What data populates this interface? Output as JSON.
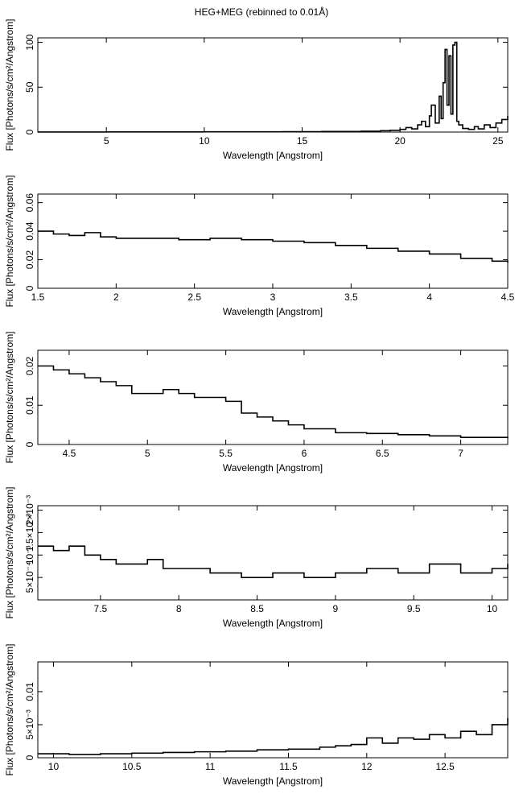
{
  "figure_title": "HEG+MEG (rebinned to 0.01Å)",
  "chart_data": [
    {
      "type": "line",
      "title": "",
      "xlabel": "Wavelength [Angstrom]",
      "ylabel": "Flux [Photons/s/cm²/Angstrom]",
      "xlim": [
        1.5,
        25.5
      ],
      "ylim": [
        0,
        105
      ],
      "xticks": [
        5,
        10,
        15,
        20,
        25
      ],
      "xtick_labels": [
        "5",
        "10",
        "15",
        "20",
        "25"
      ],
      "yticks": [
        0,
        50,
        100
      ],
      "ytick_labels": [
        "0",
        "50",
        "100"
      ],
      "grid": false,
      "series": [
        {
          "x": [
            1.5,
            3.0,
            5.0,
            8.0,
            10.0,
            12.0,
            14.0,
            16.0,
            18.0,
            19.0,
            19.5,
            20.0,
            20.3,
            20.6,
            20.9,
            21.1,
            21.3,
            21.5,
            21.6,
            21.8,
            22.0,
            22.1,
            22.2,
            22.3,
            22.4,
            22.5,
            22.6,
            22.7,
            22.8,
            22.9,
            23.0,
            23.2,
            23.5,
            23.8,
            24.0,
            24.3,
            24.6,
            24.9,
            25.2,
            25.5
          ],
          "y": [
            0.1,
            0.1,
            0.2,
            0.2,
            0.3,
            0.3,
            0.4,
            0.6,
            1.0,
            1.5,
            2.0,
            3.0,
            5.0,
            3.5,
            8.0,
            12.0,
            6.0,
            18.0,
            30.0,
            10.0,
            40.0,
            15.0,
            55.0,
            92.0,
            30.0,
            85.0,
            20.0,
            97.0,
            100.0,
            12.0,
            8.0,
            4.0,
            3.0,
            6.0,
            3.5,
            8.0,
            5.0,
            10.0,
            14.0,
            18.0
          ]
        }
      ]
    },
    {
      "type": "line",
      "title": "",
      "xlabel": "Wavelength [Angstrom]",
      "ylabel": "Flux [Photons/s/cm²/Angstrom]",
      "xlim": [
        1.5,
        4.5
      ],
      "ylim": [
        0,
        0.066
      ],
      "xticks": [
        1.5,
        2,
        2.5,
        3,
        3.5,
        4,
        4.5
      ],
      "xtick_labels": [
        "1.5",
        "2",
        "2.5",
        "3",
        "3.5",
        "4",
        "4.5"
      ],
      "yticks": [
        0,
        0.02,
        0.04,
        0.06
      ],
      "ytick_labels": [
        "0",
        "0.02",
        "0.04",
        "0.06"
      ],
      "grid": false,
      "series": [
        {
          "x": [
            1.5,
            1.6,
            1.7,
            1.8,
            1.9,
            2.0,
            2.2,
            2.4,
            2.6,
            2.8,
            3.0,
            3.2,
            3.4,
            3.6,
            3.8,
            4.0,
            4.2,
            4.4,
            4.5
          ],
          "y": [
            0.04,
            0.038,
            0.037,
            0.039,
            0.036,
            0.035,
            0.035,
            0.034,
            0.035,
            0.034,
            0.033,
            0.032,
            0.03,
            0.028,
            0.026,
            0.024,
            0.021,
            0.019,
            0.018
          ]
        }
      ]
    },
    {
      "type": "line",
      "title": "",
      "xlabel": "Wavelength [Angstrom]",
      "ylabel": "Flux [Photons/s/cm²/Angstrom]",
      "xlim": [
        4.3,
        7.3
      ],
      "ylim": [
        0,
        0.024
      ],
      "xticks": [
        4.5,
        5,
        5.5,
        6,
        6.5,
        7
      ],
      "xtick_labels": [
        "4.5",
        "5",
        "5.5",
        "6",
        "6.5",
        "7"
      ],
      "yticks": [
        0,
        0.01,
        0.02
      ],
      "ytick_labels": [
        "0",
        "0.01",
        "0.02"
      ],
      "grid": false,
      "series": [
        {
          "x": [
            4.3,
            4.4,
            4.5,
            4.6,
            4.7,
            4.8,
            4.9,
            5.0,
            5.1,
            5.2,
            5.3,
            5.4,
            5.5,
            5.6,
            5.7,
            5.8,
            5.9,
            6.0,
            6.2,
            6.4,
            6.6,
            6.8,
            7.0,
            7.3
          ],
          "y": [
            0.02,
            0.019,
            0.018,
            0.017,
            0.016,
            0.015,
            0.013,
            0.013,
            0.014,
            0.013,
            0.012,
            0.012,
            0.011,
            0.008,
            0.007,
            0.006,
            0.005,
            0.004,
            0.003,
            0.0028,
            0.0025,
            0.0022,
            0.0018,
            0.0016
          ]
        }
      ]
    },
    {
      "type": "line",
      "title": "",
      "xlabel": "Wavelength [Angstrom]",
      "ylabel": "Flux [Photons/s/cm²/Angstrom]",
      "xlim": [
        7.1,
        10.1
      ],
      "ylim": [
        0,
        0.0021
      ],
      "xticks": [
        7.5,
        8,
        8.5,
        9,
        9.5,
        10
      ],
      "xtick_labels": [
        "7.5",
        "8",
        "8.5",
        "9",
        "9.5",
        "10"
      ],
      "yticks": [
        0.0005,
        0.001,
        0.0015,
        0.002
      ],
      "ytick_labels": [
        "5×10⁻⁴",
        "10⁻³",
        "1.5×10⁻³",
        "2×10⁻³"
      ],
      "grid": false,
      "series": [
        {
          "x": [
            7.1,
            7.2,
            7.3,
            7.4,
            7.5,
            7.6,
            7.7,
            7.8,
            7.9,
            8.0,
            8.2,
            8.4,
            8.6,
            8.8,
            9.0,
            9.2,
            9.4,
            9.6,
            9.8,
            10.0,
            10.1
          ],
          "y": [
            0.0012,
            0.0011,
            0.0012,
            0.001,
            0.0009,
            0.0008,
            0.0008,
            0.0009,
            0.0007,
            0.0007,
            0.0006,
            0.0005,
            0.0006,
            0.0005,
            0.0006,
            0.0007,
            0.0006,
            0.0008,
            0.0006,
            0.0007,
            0.0008
          ]
        }
      ]
    },
    {
      "type": "line",
      "title": "",
      "xlabel": "Wavelength [Angstrom]",
      "ylabel": "Flux [Photons/s/cm²/Angstrom]",
      "xlim": [
        9.9,
        12.9
      ],
      "ylim": [
        0,
        0.0145
      ],
      "xticks": [
        10,
        10.5,
        11,
        11.5,
        12,
        12.5
      ],
      "xtick_labels": [
        "10",
        "10.5",
        "11",
        "11.5",
        "12",
        "12.5"
      ],
      "yticks": [
        0,
        0.005,
        0.01
      ],
      "ytick_labels": [
        "0",
        "5×10⁻³",
        "0.01"
      ],
      "grid": false,
      "series": [
        {
          "x": [
            9.9,
            10.1,
            10.3,
            10.5,
            10.7,
            10.9,
            11.1,
            11.3,
            11.5,
            11.7,
            11.8,
            11.9,
            12.0,
            12.1,
            12.2,
            12.3,
            12.4,
            12.5,
            12.6,
            12.7,
            12.8,
            12.9
          ],
          "y": [
            0.0006,
            0.0005,
            0.0006,
            0.0007,
            0.0008,
            0.0009,
            0.001,
            0.0012,
            0.0013,
            0.0016,
            0.0018,
            0.002,
            0.003,
            0.0022,
            0.003,
            0.0028,
            0.0035,
            0.003,
            0.004,
            0.0035,
            0.005,
            0.006
          ]
        }
      ]
    }
  ]
}
